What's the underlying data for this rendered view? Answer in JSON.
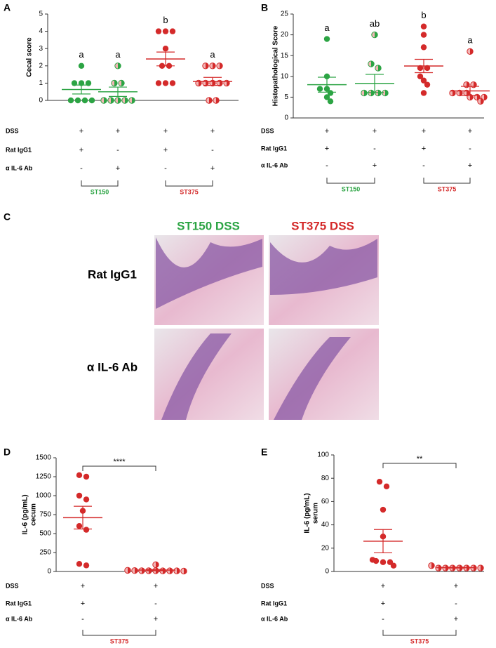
{
  "chart_data": [
    {
      "type": "dot",
      "panel": "A",
      "ylabel": [
        "Cecal score"
      ],
      "ylim": [
        0,
        5
      ],
      "yticks": [
        0,
        1,
        2,
        3,
        4,
        5
      ],
      "rows": [
        "DSS",
        "Rat IgG1",
        "α IL-6 Ab"
      ],
      "groups": [
        {
          "color": "#2ca444",
          "marker": "filled",
          "values": [
            2,
            1,
            1,
            1,
            0,
            0,
            0,
            0
          ],
          "mean": 0.63,
          "sem": 0.26,
          "letter": "a",
          "signs": [
            "+",
            "+",
            "-"
          ]
        },
        {
          "color": "#2ca444",
          "marker": "half",
          "values": [
            2,
            1,
            1,
            0,
            0,
            0,
            0,
            0
          ],
          "mean": 0.5,
          "sem": 0.27,
          "letter": "a",
          "signs": [
            "+",
            "-",
            "+"
          ]
        },
        {
          "color": "#d42a2a",
          "marker": "filled",
          "values": [
            4,
            4,
            4,
            3,
            2,
            2,
            1,
            1,
            1
          ],
          "mean": 2.4,
          "sem": 0.4,
          "letter": "b",
          "signs": [
            "+",
            "+",
            "-"
          ]
        },
        {
          "color": "#d42a2a",
          "marker": "half",
          "values": [
            2,
            2,
            2,
            1,
            1,
            1,
            1,
            1,
            0,
            0
          ],
          "mean": 1.1,
          "sem": 0.23,
          "letter": "a",
          "signs": [
            "+",
            "-",
            "+"
          ]
        }
      ],
      "brackets": [
        {
          "label": "ST150",
          "color": "#2ca444"
        },
        {
          "label": "ST375",
          "color": "#d42a2a"
        }
      ]
    },
    {
      "type": "dot",
      "panel": "B",
      "ylabel": [
        "Histopathological Score"
      ],
      "ylim": [
        0,
        25
      ],
      "yticks": [
        0,
        5,
        10,
        15,
        20,
        25
      ],
      "rows": [
        "DSS",
        "Rat IgG1",
        "α IL-6 Ab"
      ],
      "groups": [
        {
          "color": "#2ca444",
          "marker": "filled",
          "values": [
            19,
            10,
            7,
            7,
            6,
            5,
            4
          ],
          "mean": 8,
          "sem": 1.8,
          "letter": "a",
          "signs": [
            "+",
            "+",
            "-"
          ]
        },
        {
          "color": "#2ca444",
          "marker": "half",
          "values": [
            20,
            13,
            12,
            6,
            6,
            6,
            6
          ],
          "mean": 8.3,
          "sem": 2.2,
          "letter": "ab",
          "signs": [
            "+",
            "-",
            "+"
          ]
        },
        {
          "color": "#d42a2a",
          "marker": "filled",
          "values": [
            22,
            20,
            17,
            12,
            12,
            10,
            9,
            8,
            6
          ],
          "mean": 12.5,
          "sem": 1.6,
          "letter": "b",
          "signs": [
            "+",
            "+",
            "-"
          ]
        },
        {
          "color": "#d42a2a",
          "marker": "half",
          "values": [
            16,
            8,
            8,
            6,
            6,
            6,
            5,
            5,
            5,
            4
          ],
          "mean": 6.5,
          "sem": 1.1,
          "letter": "a",
          "signs": [
            "+",
            "-",
            "+"
          ]
        }
      ],
      "brackets": [
        {
          "label": "ST150",
          "color": "#2ca444"
        },
        {
          "label": "ST375",
          "color": "#d42a2a"
        }
      ]
    },
    {
      "type": "dot",
      "panel": "D",
      "ylabel": [
        "IL-6 (pg/mL)",
        "cecum"
      ],
      "ylim": [
        0,
        1500
      ],
      "yticks": [
        0,
        250,
        500,
        750,
        1000,
        1250,
        1500
      ],
      "rows": [
        "DSS",
        "Rat IgG1",
        "α IL-6 Ab"
      ],
      "stat": "****",
      "groups": [
        {
          "color": "#d42a2a",
          "marker": "filled",
          "values": [
            1270,
            1250,
            1000,
            950,
            800,
            600,
            550,
            100,
            80
          ],
          "mean": 710,
          "sem": 150,
          "signs": [
            "+",
            "+",
            "-"
          ]
        },
        {
          "color": "#d42a2a",
          "marker": "half",
          "values": [
            90,
            15,
            12,
            10,
            10,
            10,
            8,
            8,
            8,
            5
          ],
          "mean": 18,
          "sem": 8,
          "signs": [
            "+",
            "-",
            "+"
          ]
        }
      ],
      "brackets": [
        {
          "label": "ST375",
          "color": "#d42a2a"
        }
      ]
    },
    {
      "type": "dot",
      "panel": "E",
      "ylabel": [
        "IL-6 (pg/mL)",
        "serum"
      ],
      "ylim": [
        0,
        100
      ],
      "yticks": [
        0,
        20,
        40,
        60,
        80,
        100
      ],
      "rows": [
        "DSS",
        "Rat IgG1",
        "α IL-6 Ab"
      ],
      "stat": "**",
      "groups": [
        {
          "color": "#d42a2a",
          "marker": "filled",
          "values": [
            77,
            73,
            53,
            30,
            10,
            9,
            8,
            8,
            5
          ],
          "mean": 26,
          "sem": 10,
          "signs": [
            "+",
            "+",
            "-"
          ]
        },
        {
          "color": "#d42a2a",
          "marker": "half",
          "values": [
            5,
            3,
            3,
            3,
            3,
            3,
            3,
            3
          ],
          "mean": 3.3,
          "sem": 0.3,
          "signs": [
            "+",
            "-",
            "+"
          ]
        }
      ],
      "brackets": [
        {
          "label": "ST375",
          "color": "#d42a2a"
        }
      ]
    }
  ],
  "histology": {
    "panel": "C",
    "columns": [
      "ST150 DSS",
      "ST375 DSS"
    ],
    "rows": [
      "Rat IgG1",
      "α IL-6 Ab"
    ]
  }
}
